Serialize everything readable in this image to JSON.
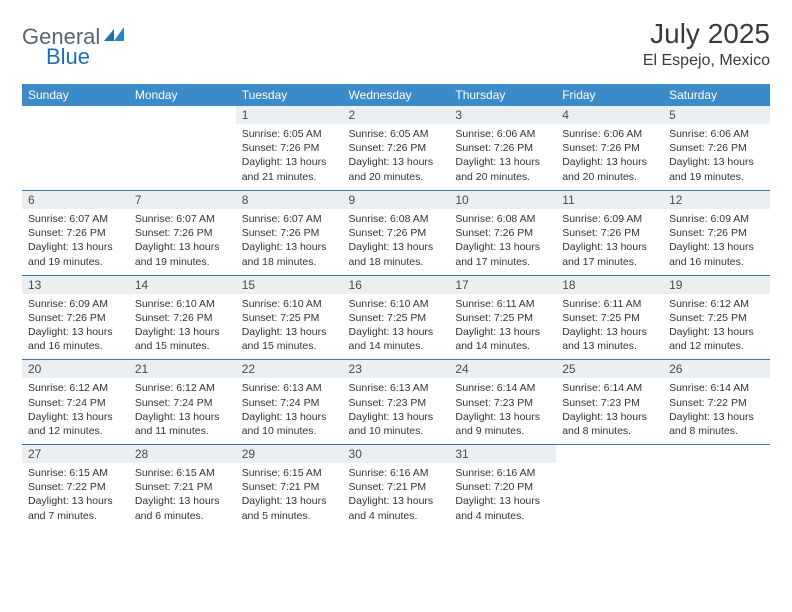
{
  "brand": {
    "word1": "General",
    "word2": "Blue",
    "color_gray": "#5a6570",
    "color_blue": "#1f6fb2"
  },
  "title": "July 2025",
  "location": "El Espejo, Mexico",
  "header_bg": "#3b8bc9",
  "daynum_bg": "#eceff1",
  "days_of_week": [
    "Sunday",
    "Monday",
    "Tuesday",
    "Wednesday",
    "Thursday",
    "Friday",
    "Saturday"
  ],
  "weeks": [
    [
      {
        "n": "",
        "sr": "",
        "ss": "",
        "dl": ""
      },
      {
        "n": "",
        "sr": "",
        "ss": "",
        "dl": ""
      },
      {
        "n": "1",
        "sr": "Sunrise: 6:05 AM",
        "ss": "Sunset: 7:26 PM",
        "dl": "Daylight: 13 hours and 21 minutes."
      },
      {
        "n": "2",
        "sr": "Sunrise: 6:05 AM",
        "ss": "Sunset: 7:26 PM",
        "dl": "Daylight: 13 hours and 20 minutes."
      },
      {
        "n": "3",
        "sr": "Sunrise: 6:06 AM",
        "ss": "Sunset: 7:26 PM",
        "dl": "Daylight: 13 hours and 20 minutes."
      },
      {
        "n": "4",
        "sr": "Sunrise: 6:06 AM",
        "ss": "Sunset: 7:26 PM",
        "dl": "Daylight: 13 hours and 20 minutes."
      },
      {
        "n": "5",
        "sr": "Sunrise: 6:06 AM",
        "ss": "Sunset: 7:26 PM",
        "dl": "Daylight: 13 hours and 19 minutes."
      }
    ],
    [
      {
        "n": "6",
        "sr": "Sunrise: 6:07 AM",
        "ss": "Sunset: 7:26 PM",
        "dl": "Daylight: 13 hours and 19 minutes."
      },
      {
        "n": "7",
        "sr": "Sunrise: 6:07 AM",
        "ss": "Sunset: 7:26 PM",
        "dl": "Daylight: 13 hours and 19 minutes."
      },
      {
        "n": "8",
        "sr": "Sunrise: 6:07 AM",
        "ss": "Sunset: 7:26 PM",
        "dl": "Daylight: 13 hours and 18 minutes."
      },
      {
        "n": "9",
        "sr": "Sunrise: 6:08 AM",
        "ss": "Sunset: 7:26 PM",
        "dl": "Daylight: 13 hours and 18 minutes."
      },
      {
        "n": "10",
        "sr": "Sunrise: 6:08 AM",
        "ss": "Sunset: 7:26 PM",
        "dl": "Daylight: 13 hours and 17 minutes."
      },
      {
        "n": "11",
        "sr": "Sunrise: 6:09 AM",
        "ss": "Sunset: 7:26 PM",
        "dl": "Daylight: 13 hours and 17 minutes."
      },
      {
        "n": "12",
        "sr": "Sunrise: 6:09 AM",
        "ss": "Sunset: 7:26 PM",
        "dl": "Daylight: 13 hours and 16 minutes."
      }
    ],
    [
      {
        "n": "13",
        "sr": "Sunrise: 6:09 AM",
        "ss": "Sunset: 7:26 PM",
        "dl": "Daylight: 13 hours and 16 minutes."
      },
      {
        "n": "14",
        "sr": "Sunrise: 6:10 AM",
        "ss": "Sunset: 7:26 PM",
        "dl": "Daylight: 13 hours and 15 minutes."
      },
      {
        "n": "15",
        "sr": "Sunrise: 6:10 AM",
        "ss": "Sunset: 7:25 PM",
        "dl": "Daylight: 13 hours and 15 minutes."
      },
      {
        "n": "16",
        "sr": "Sunrise: 6:10 AM",
        "ss": "Sunset: 7:25 PM",
        "dl": "Daylight: 13 hours and 14 minutes."
      },
      {
        "n": "17",
        "sr": "Sunrise: 6:11 AM",
        "ss": "Sunset: 7:25 PM",
        "dl": "Daylight: 13 hours and 14 minutes."
      },
      {
        "n": "18",
        "sr": "Sunrise: 6:11 AM",
        "ss": "Sunset: 7:25 PM",
        "dl": "Daylight: 13 hours and 13 minutes."
      },
      {
        "n": "19",
        "sr": "Sunrise: 6:12 AM",
        "ss": "Sunset: 7:25 PM",
        "dl": "Daylight: 13 hours and 12 minutes."
      }
    ],
    [
      {
        "n": "20",
        "sr": "Sunrise: 6:12 AM",
        "ss": "Sunset: 7:24 PM",
        "dl": "Daylight: 13 hours and 12 minutes."
      },
      {
        "n": "21",
        "sr": "Sunrise: 6:12 AM",
        "ss": "Sunset: 7:24 PM",
        "dl": "Daylight: 13 hours and 11 minutes."
      },
      {
        "n": "22",
        "sr": "Sunrise: 6:13 AM",
        "ss": "Sunset: 7:24 PM",
        "dl": "Daylight: 13 hours and 10 minutes."
      },
      {
        "n": "23",
        "sr": "Sunrise: 6:13 AM",
        "ss": "Sunset: 7:23 PM",
        "dl": "Daylight: 13 hours and 10 minutes."
      },
      {
        "n": "24",
        "sr": "Sunrise: 6:14 AM",
        "ss": "Sunset: 7:23 PM",
        "dl": "Daylight: 13 hours and 9 minutes."
      },
      {
        "n": "25",
        "sr": "Sunrise: 6:14 AM",
        "ss": "Sunset: 7:23 PM",
        "dl": "Daylight: 13 hours and 8 minutes."
      },
      {
        "n": "26",
        "sr": "Sunrise: 6:14 AM",
        "ss": "Sunset: 7:22 PM",
        "dl": "Daylight: 13 hours and 8 minutes."
      }
    ],
    [
      {
        "n": "27",
        "sr": "Sunrise: 6:15 AM",
        "ss": "Sunset: 7:22 PM",
        "dl": "Daylight: 13 hours and 7 minutes."
      },
      {
        "n": "28",
        "sr": "Sunrise: 6:15 AM",
        "ss": "Sunset: 7:21 PM",
        "dl": "Daylight: 13 hours and 6 minutes."
      },
      {
        "n": "29",
        "sr": "Sunrise: 6:15 AM",
        "ss": "Sunset: 7:21 PM",
        "dl": "Daylight: 13 hours and 5 minutes."
      },
      {
        "n": "30",
        "sr": "Sunrise: 6:16 AM",
        "ss": "Sunset: 7:21 PM",
        "dl": "Daylight: 13 hours and 4 minutes."
      },
      {
        "n": "31",
        "sr": "Sunrise: 6:16 AM",
        "ss": "Sunset: 7:20 PM",
        "dl": "Daylight: 13 hours and 4 minutes."
      },
      {
        "n": "",
        "sr": "",
        "ss": "",
        "dl": ""
      },
      {
        "n": "",
        "sr": "",
        "ss": "",
        "dl": ""
      }
    ]
  ]
}
